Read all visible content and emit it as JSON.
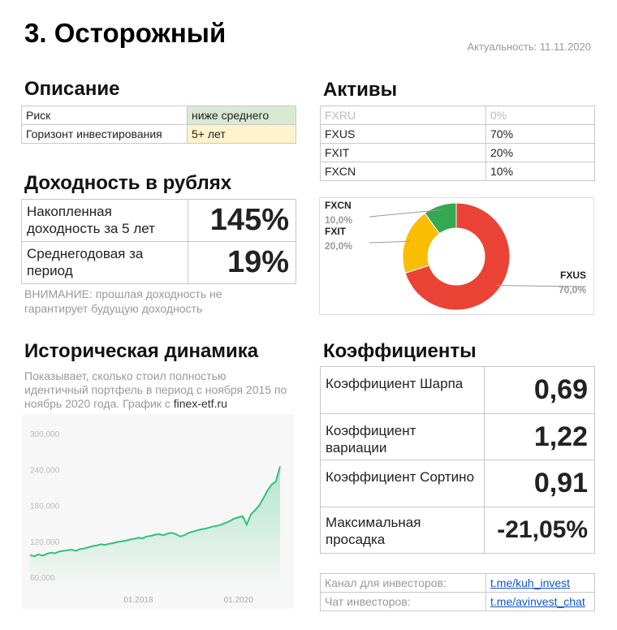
{
  "header": {
    "title": "3. Осторожный",
    "date": "Актуальность: 11.11.2020"
  },
  "description": {
    "heading": "Описание",
    "rows": [
      [
        "Риск",
        "ниже среднего"
      ],
      [
        "Горизонт инвестирования",
        "5+ лет"
      ]
    ]
  },
  "returns": {
    "heading": "Доходность в рублях",
    "rows": [
      [
        "Накопленная доходность за 5 лет",
        "145%"
      ],
      [
        "Среднегодовая за период",
        "19%"
      ]
    ],
    "note": "ВНИМАНИЕ: прошлая доходность не гарантирует будущую доходность"
  },
  "history": {
    "heading": "Историческая динамика",
    "text": "Показывает, сколько стоил полностью идентичный портфель в период с ноября 2015 по ноябрь 2020 года. График с ",
    "source": "finex-etf.ru"
  },
  "assets": {
    "heading": "Активы",
    "rows": [
      [
        "FXRU",
        "0%"
      ],
      [
        "FXUS",
        "70%"
      ],
      [
        "FXIT",
        "20%"
      ],
      [
        "FXCN",
        "10%"
      ]
    ]
  },
  "coefficients": {
    "heading": "Коэффициенты",
    "rows": [
      [
        "Коэффициент Шарпа",
        "0,69"
      ],
      [
        "Коэффициент вариации",
        "1,22"
      ],
      [
        "Коэффициент Сортино",
        "0,91"
      ],
      [
        "Максимальная просадка",
        "-21,05%"
      ]
    ]
  },
  "links": {
    "rows": [
      [
        "Канал для инвесторов:",
        "t.me/kuh_invest"
      ],
      [
        "Чат инвесторов:",
        "t.me/avinvest_chat"
      ]
    ]
  },
  "chart_data": [
    {
      "type": "pie",
      "donut": true,
      "categories": [
        "FXUS",
        "FXIT",
        "FXCN"
      ],
      "values": [
        70,
        20,
        10
      ],
      "value_labels": [
        "70,0%",
        "20,0%",
        "10,0%"
      ],
      "colors": [
        "#ea4335",
        "#fbbc04",
        "#34a853"
      ]
    },
    {
      "type": "line",
      "color": "#2ec27a",
      "grid": false,
      "categories": [
        null,
        null,
        null,
        null,
        null,
        null,
        null,
        null,
        null,
        null,
        null,
        null,
        null,
        null,
        null,
        null,
        null,
        null,
        null,
        null,
        null,
        null,
        null,
        null,
        null,
        null,
        "01.2018",
        null,
        null,
        null,
        null,
        null,
        null,
        null,
        null,
        null,
        null,
        null,
        null,
        null,
        null,
        null,
        null,
        null,
        null,
        null,
        null,
        null,
        null,
        null,
        "01.2020",
        null,
        null,
        null,
        null,
        null,
        null,
        null,
        null,
        null,
        null
      ],
      "values": [
        97000,
        95000,
        98000,
        96000,
        99000,
        101000,
        100000,
        103000,
        104000,
        105000,
        106000,
        104000,
        107000,
        108000,
        110000,
        112000,
        113000,
        115000,
        114000,
        116000,
        117000,
        119000,
        120000,
        121000,
        123000,
        124000,
        126000,
        125000,
        128000,
        129000,
        131000,
        132000,
        130000,
        133000,
        134000,
        132000,
        128000,
        130000,
        134000,
        136000,
        138000,
        140000,
        141000,
        143000,
        145000,
        146000,
        148000,
        151000,
        154000,
        158000,
        160000,
        162000,
        148000,
        165000,
        172000,
        180000,
        192000,
        205000,
        215000,
        220000,
        245000
      ],
      "ylim": [
        60000,
        300000
      ],
      "yticks": [
        {
          "value": 60000,
          "label": "60,000"
        },
        {
          "value": 120000,
          "label": "120,000"
        },
        {
          "value": 180000,
          "label": "180,000"
        },
        {
          "value": 240000,
          "label": "240,000"
        },
        {
          "value": 300000,
          "label": "300,000"
        }
      ]
    }
  ]
}
